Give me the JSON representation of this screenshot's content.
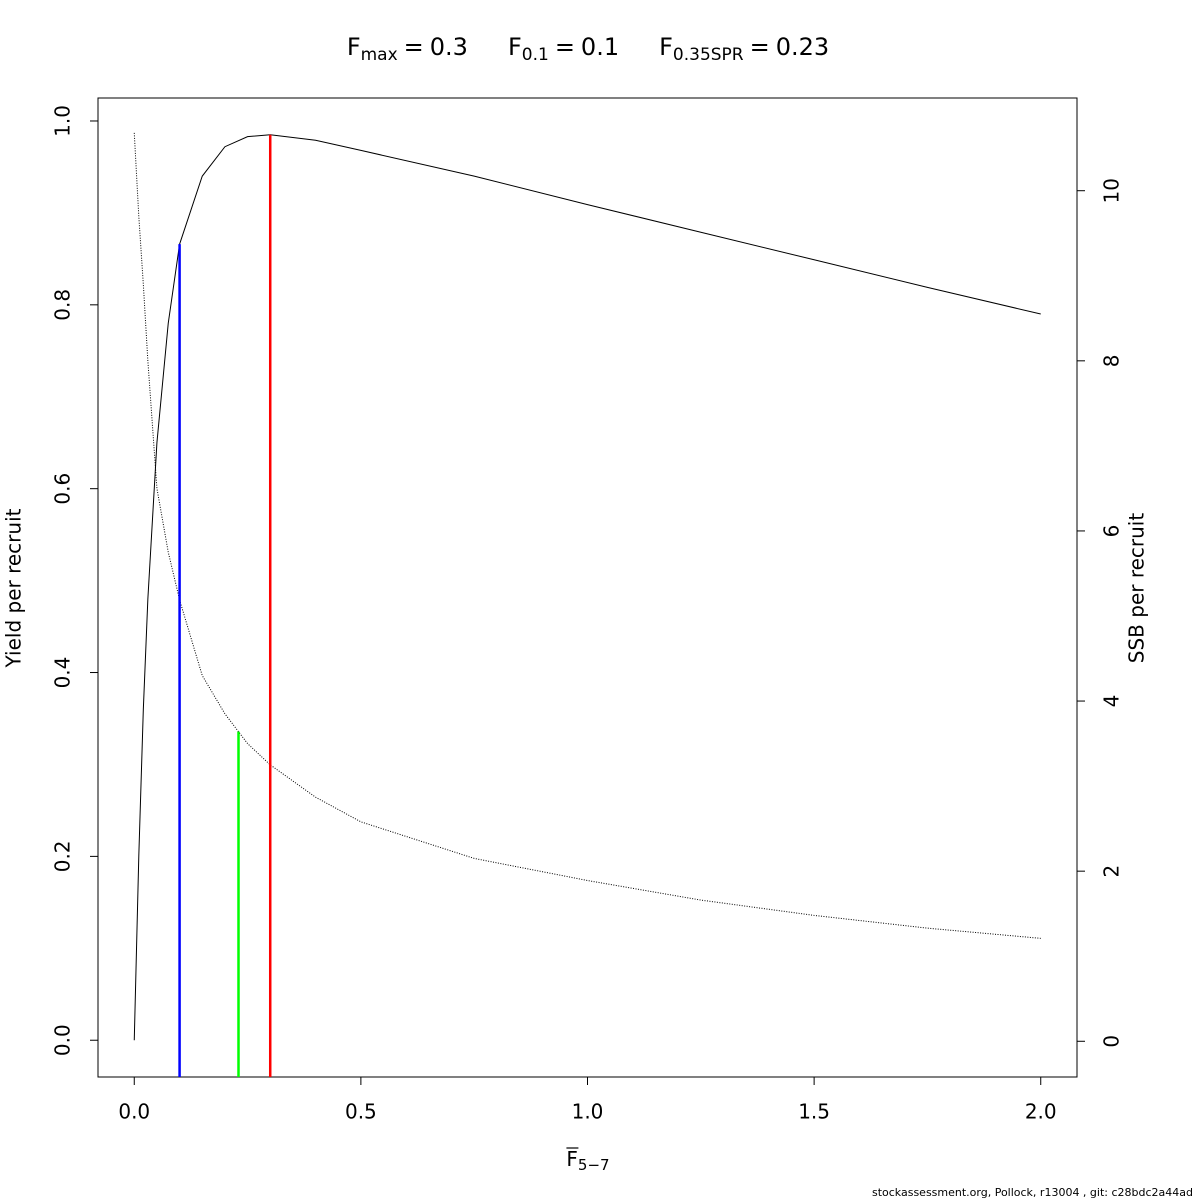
{
  "chart_data": {
    "type": "line",
    "title_items": [
      {
        "symbol": "F",
        "subscript": "max",
        "relation": "=",
        "value": 0.3,
        "color": "#ff0000",
        "top": 0.985
      },
      {
        "symbol": "F",
        "subscript": "0.1",
        "relation": "=",
        "value": 0.1,
        "color": "#0000ff",
        "top": 0.866
      },
      {
        "symbol": "F",
        "subscript": "0.35SPR",
        "relation": "=",
        "value": 0.23,
        "color": "#00ff00",
        "top": 3.64,
        "top_axis": "y2"
      }
    ],
    "x_label": {
      "symbol": "F",
      "subscript": "5−7"
    },
    "y_label": "Yield per recruit",
    "y2_label": "SSB per recruit",
    "x": [
      0,
      0.01,
      0.02,
      0.03,
      0.05,
      0.075,
      0.1,
      0.15,
      0.2,
      0.25,
      0.3,
      0.4,
      0.5,
      0.75,
      1.0,
      1.25,
      1.5,
      1.75,
      2.0
    ],
    "series": [
      {
        "color": "#000000",
        "line_style": "solid",
        "values": [
          0,
          0.2,
          0.36,
          0.48,
          0.65,
          0.78,
          0.866,
          0.94,
          0.972,
          0.983,
          0.985,
          0.979,
          0.968,
          0.94,
          0.909,
          0.879,
          0.849,
          0.819,
          0.79
        ]
      },
      {
        "color": "#000000",
        "line_style": "dotted",
        "axis": "y2",
        "values": [
          10.68,
          9.7,
          8.9,
          8.0,
          6.5,
          5.75,
          5.19,
          4.3,
          3.85,
          3.5,
          3.25,
          2.87,
          2.58,
          2.15,
          1.89,
          1.66,
          1.48,
          1.33,
          1.21
        ]
      }
    ],
    "xlim": [
      -0.08,
      2.08
    ],
    "xticks": [
      {
        "value": 0,
        "label": "0.0"
      },
      0.5,
      {
        "value": 1,
        "label": "1.0"
      },
      1.5,
      {
        "value": 2,
        "label": "2.0"
      }
    ],
    "ylim": [
      -0.04,
      1.025
    ],
    "yticks": [
      {
        "value": 0,
        "label": "0.0"
      },
      0.2,
      0.4,
      0.6,
      0.8,
      {
        "value": 1,
        "label": "1.0"
      }
    ],
    "y2lim": [
      -0.42,
      11.09
    ],
    "y2ticks": [
      0,
      2,
      4,
      6,
      8,
      10
    ],
    "footer": "stockassessment.org, Pollock, r13004 , git: c28bdc2a44ad"
  }
}
